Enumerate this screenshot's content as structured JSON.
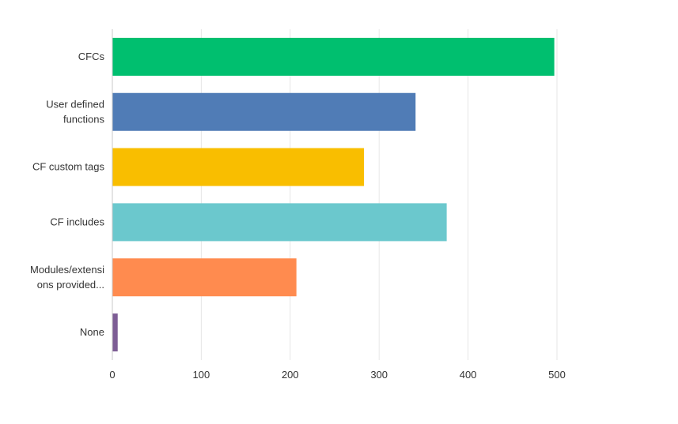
{
  "chart_data": {
    "type": "bar",
    "orientation": "horizontal",
    "categories": [
      [
        "CFCs"
      ],
      [
        "User defined",
        "functions"
      ],
      [
        "CF custom tags"
      ],
      [
        "CF includes"
      ],
      [
        "Modules/extensi",
        "ons provided..."
      ],
      [
        "None"
      ]
    ],
    "values": [
      497,
      341,
      283,
      376,
      207,
      6
    ],
    "colors": [
      "#00bf6f",
      "#507cb6",
      "#f9be00",
      "#6bc8cd",
      "#ff8b4f",
      "#7d5d95"
    ],
    "xlim": [
      0,
      500
    ],
    "xticks": [
      "0",
      "100",
      "200",
      "300",
      "400",
      "500"
    ],
    "grid": true,
    "title": "",
    "xlabel": "",
    "ylabel": ""
  }
}
